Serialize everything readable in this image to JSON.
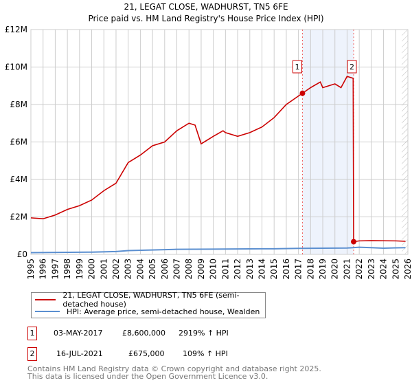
{
  "colors": {
    "property": "#cc0000",
    "hpi": "#5b8fd0",
    "shade": "#eef3fc"
  },
  "chart_data": {
    "type": "line",
    "title": "21, LEGAT CLOSE, WADHURST, TN5 6FE",
    "subtitle": "Price paid vs. HM Land Registry's House Price Index (HPI)",
    "xlim": [
      1995,
      2026
    ],
    "ylim": [
      0,
      12000000
    ],
    "yticks": [
      {
        "v": 0,
        "label": "£0"
      },
      {
        "v": 2000000,
        "label": "£2M"
      },
      {
        "v": 4000000,
        "label": "£4M"
      },
      {
        "v": 6000000,
        "label": "£6M"
      },
      {
        "v": 8000000,
        "label": "£8M"
      },
      {
        "v": 10000000,
        "label": "£10M"
      },
      {
        "v": 12000000,
        "label": "£12M"
      }
    ],
    "xticks": [
      "1995",
      "1996",
      "1997",
      "1998",
      "1999",
      "2000",
      "2001",
      "2002",
      "2003",
      "2004",
      "2005",
      "2006",
      "2007",
      "2008",
      "2009",
      "2010",
      "2011",
      "2012",
      "2013",
      "2014",
      "2015",
      "2016",
      "2017",
      "2018",
      "2019",
      "2020",
      "2021",
      "2022",
      "2023",
      "2024",
      "2025",
      "2026"
    ],
    "grid": true,
    "series": [
      {
        "name": "21, LEGAT CLOSE, WADHURST, TN5 6FE (semi-detached house)",
        "points": [
          [
            1995,
            1950000
          ],
          [
            1996,
            1900000
          ],
          [
            1997,
            2100000
          ],
          [
            1998,
            2400000
          ],
          [
            1999,
            2600000
          ],
          [
            2000,
            2900000
          ],
          [
            2001,
            3400000
          ],
          [
            2002,
            3800000
          ],
          [
            2003,
            4900000
          ],
          [
            2004,
            5300000
          ],
          [
            2005,
            5800000
          ],
          [
            2006,
            6000000
          ],
          [
            2007,
            6600000
          ],
          [
            2008,
            7000000
          ],
          [
            2008.5,
            6900000
          ],
          [
            2009,
            5900000
          ],
          [
            2010,
            6300000
          ],
          [
            2010.8,
            6600000
          ],
          [
            2011,
            6500000
          ],
          [
            2012,
            6300000
          ],
          [
            2013,
            6500000
          ],
          [
            2014,
            6800000
          ],
          [
            2015,
            7300000
          ],
          [
            2016,
            8000000
          ],
          [
            2017.33,
            8600000
          ],
          [
            2018,
            8900000
          ],
          [
            2018.8,
            9200000
          ],
          [
            2019,
            8900000
          ],
          [
            2020,
            9100000
          ],
          [
            2020.5,
            8900000
          ],
          [
            2021,
            9500000
          ],
          [
            2021.5,
            9400000
          ],
          [
            2021.54,
            675000
          ],
          [
            2022,
            720000
          ],
          [
            2023,
            730000
          ],
          [
            2025,
            720000
          ],
          [
            2025.8,
            700000
          ]
        ]
      },
      {
        "name": "HPI: Average price, semi-detached house, Wealden",
        "points": [
          [
            1995,
            90000
          ],
          [
            2000,
            120000
          ],
          [
            2002,
            150000
          ],
          [
            2003,
            200000
          ],
          [
            2007,
            270000
          ],
          [
            2010,
            280000
          ],
          [
            2015,
            300000
          ],
          [
            2017,
            320000
          ],
          [
            2021,
            340000
          ],
          [
            2022,
            380000
          ],
          [
            2023,
            360000
          ],
          [
            2024,
            330000
          ],
          [
            2025,
            350000
          ],
          [
            2025.8,
            360000
          ]
        ]
      }
    ],
    "sales": [
      {
        "id": "1",
        "x": 2017.33,
        "value": 8600000,
        "date": "03-MAY-2017",
        "price": "£8,600,000",
        "hpi": "2919% ↑ HPI"
      },
      {
        "id": "2",
        "x": 2021.54,
        "value": 675000,
        "date": "16-JUL-2021",
        "price": "£675,000",
        "hpi": "109% ↑ HPI"
      }
    ],
    "hatch_from": 2025.5
  },
  "footer": {
    "line1": "Contains HM Land Registry data © Crown copyright and database right 2025.",
    "line2": "This data is licensed under the Open Government Licence v3.0."
  }
}
